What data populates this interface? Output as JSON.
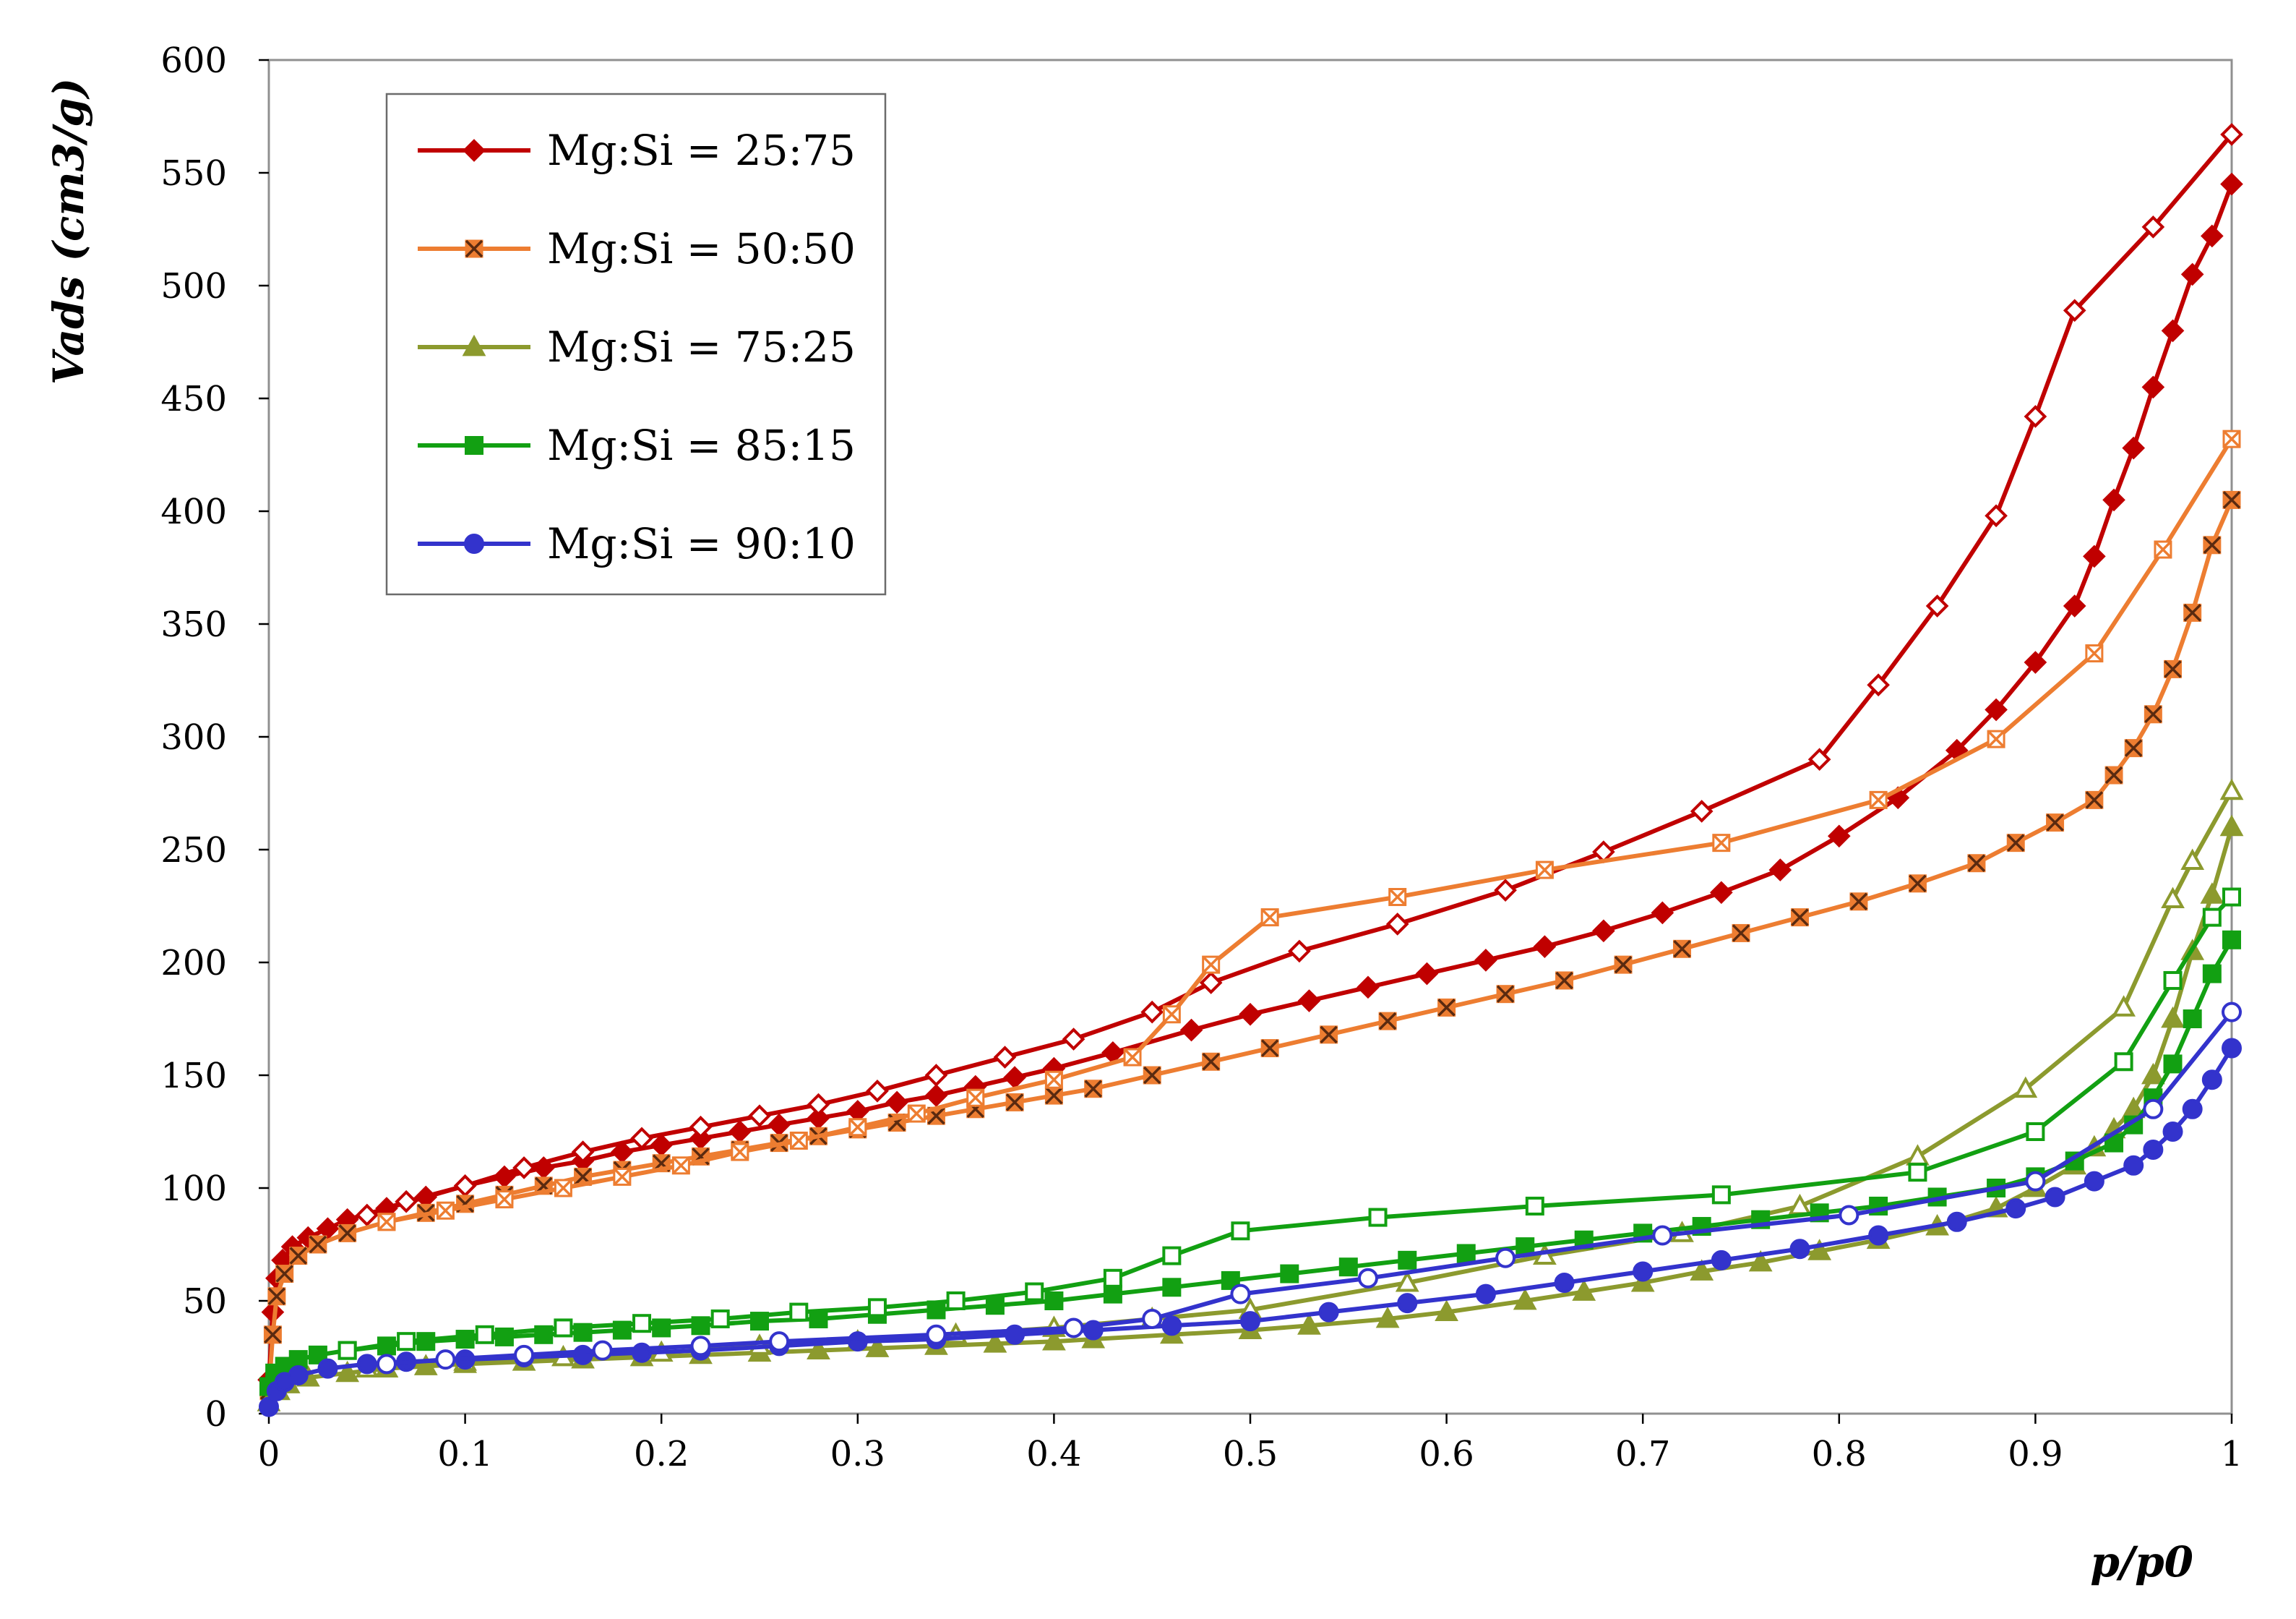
{
  "chart_data": {
    "type": "line",
    "title": "",
    "xlabel": "p/p0",
    "ylabel": "Vads (cm3/g)",
    "xlim": [
      0,
      1
    ],
    "ylim": [
      0,
      600
    ],
    "x_ticks": [
      "0",
      "0.1",
      "0.2",
      "0.3",
      "0.4",
      "0.5",
      "0.6",
      "0.7",
      "0.8",
      "0.9",
      "1"
    ],
    "y_ticks": [
      "0",
      "50",
      "100",
      "150",
      "200",
      "250",
      "300",
      "350",
      "400",
      "450",
      "500",
      "550",
      "600"
    ],
    "grid": false,
    "legend_position": "top-left",
    "series": [
      {
        "name": "Mg:Si = 25:75",
        "color": "#c00000",
        "marker": "diamond",
        "adsorption": {
          "x": [
            0.0,
            0.002,
            0.004,
            0.007,
            0.012,
            0.02,
            0.03,
            0.04,
            0.06,
            0.08,
            0.1,
            0.12,
            0.14,
            0.16,
            0.18,
            0.2,
            0.22,
            0.24,
            0.26,
            0.28,
            0.3,
            0.32,
            0.34,
            0.36,
            0.38,
            0.4,
            0.43,
            0.47,
            0.5,
            0.53,
            0.56,
            0.59,
            0.62,
            0.65,
            0.68,
            0.71,
            0.74,
            0.77,
            0.8,
            0.83,
            0.86,
            0.88,
            0.9,
            0.92,
            0.93,
            0.94,
            0.95,
            0.96,
            0.97,
            0.98,
            0.99,
            1.0
          ],
          "y": [
            15,
            45,
            60,
            68,
            74,
            78,
            82,
            86,
            91,
            96,
            101,
            105,
            109,
            112,
            116,
            119,
            122,
            125,
            128,
            131,
            134,
            138,
            141,
            145,
            149,
            153,
            160,
            170,
            177,
            183,
            189,
            195,
            201,
            207,
            214,
            222,
            231,
            241,
            256,
            273,
            294,
            312,
            333,
            358,
            380,
            405,
            428,
            455,
            480,
            505,
            522,
            545
          ]
        },
        "desorption": {
          "x": [
            1.0,
            0.96,
            0.92,
            0.9,
            0.88,
            0.85,
            0.82,
            0.79,
            0.73,
            0.68,
            0.63,
            0.575,
            0.525,
            0.48,
            0.45,
            0.41,
            0.375,
            0.34,
            0.31,
            0.28,
            0.25,
            0.22,
            0.19,
            0.16,
            0.13,
            0.1,
            0.07,
            0.05
          ],
          "y": [
            567,
            526,
            489,
            442,
            398,
            358,
            323,
            290,
            267,
            249,
            232,
            217,
            205,
            191,
            178,
            166,
            158,
            150,
            143,
            137,
            132,
            127,
            122,
            116,
            109,
            101,
            94,
            88
          ]
        }
      },
      {
        "name": "Mg:Si = 50:50",
        "color": "#ed7d31",
        "marker": "x-square",
        "adsorption": {
          "x": [
            0.0,
            0.002,
            0.004,
            0.008,
            0.015,
            0.025,
            0.04,
            0.06,
            0.08,
            0.1,
            0.12,
            0.14,
            0.16,
            0.18,
            0.2,
            0.22,
            0.24,
            0.26,
            0.28,
            0.3,
            0.32,
            0.34,
            0.36,
            0.38,
            0.4,
            0.42,
            0.45,
            0.48,
            0.51,
            0.54,
            0.57,
            0.6,
            0.63,
            0.66,
            0.69,
            0.72,
            0.75,
            0.78,
            0.81,
            0.84,
            0.87,
            0.89,
            0.91,
            0.93,
            0.94,
            0.95,
            0.96,
            0.97,
            0.98,
            0.99,
            1.0
          ],
          "y": [
            10,
            35,
            52,
            62,
            70,
            75,
            80,
            85,
            89,
            93,
            97,
            101,
            105,
            108,
            111,
            114,
            117,
            120,
            123,
            126,
            129,
            132,
            135,
            138,
            141,
            144,
            150,
            156,
            162,
            168,
            174,
            180,
            186,
            192,
            199,
            206,
            213,
            220,
            227,
            235,
            244,
            253,
            262,
            272,
            283,
            295,
            310,
            330,
            355,
            385,
            405
          ]
        },
        "desorption": {
          "x": [
            1.0,
            0.965,
            0.93,
            0.88,
            0.82,
            0.74,
            0.65,
            0.575,
            0.51,
            0.48,
            0.46,
            0.44,
            0.4,
            0.36,
            0.33,
            0.3,
            0.27,
            0.24,
            0.21,
            0.18,
            0.15,
            0.12,
            0.09,
            0.06
          ],
          "y": [
            432,
            383,
            337,
            299,
            272,
            253,
            241,
            229,
            220,
            199,
            177,
            158,
            148,
            140,
            133,
            127,
            121,
            116,
            110,
            105,
            100,
            95,
            90,
            85
          ]
        }
      },
      {
        "name": "Mg:Si = 75:25",
        "color": "#8c9a2e",
        "marker": "triangle",
        "adsorption": {
          "x": [
            0.0,
            0.005,
            0.01,
            0.02,
            0.04,
            0.06,
            0.08,
            0.1,
            0.13,
            0.16,
            0.19,
            0.22,
            0.25,
            0.28,
            0.31,
            0.34,
            0.37,
            0.4,
            0.42,
            0.46,
            0.5,
            0.53,
            0.57,
            0.6,
            0.64,
            0.67,
            0.7,
            0.73,
            0.76,
            0.79,
            0.82,
            0.85,
            0.88,
            0.9,
            0.92,
            0.93,
            0.94,
            0.95,
            0.96,
            0.97,
            0.98,
            0.99,
            1.0
          ],
          "y": [
            5,
            10,
            13,
            16,
            18,
            20,
            21,
            22,
            23,
            24,
            25,
            26,
            27,
            28,
            29,
            30,
            31,
            32,
            33,
            35,
            37,
            39,
            42,
            45,
            50,
            54,
            58,
            63,
            67,
            72,
            77,
            83,
            91,
            100,
            110,
            118,
            126,
            135,
            150,
            175,
            205,
            230,
            260
          ]
        },
        "desorption": {
          "x": [
            1.0,
            0.98,
            0.97,
            0.945,
            0.895,
            0.84,
            0.78,
            0.72,
            0.65,
            0.58,
            0.5,
            0.45,
            0.4,
            0.35,
            0.3,
            0.25,
            0.2,
            0.15,
            0.1,
            0.05
          ],
          "y": [
            276,
            245,
            228,
            180,
            144,
            114,
            92,
            80,
            70,
            58,
            46,
            42,
            38,
            35,
            32,
            30,
            27,
            25,
            23,
            20
          ]
        }
      },
      {
        "name": "Mg:Si = 85:15",
        "color": "#12a012",
        "marker": "square",
        "adsorption": {
          "x": [
            0.0,
            0.003,
            0.008,
            0.015,
            0.025,
            0.04,
            0.06,
            0.08,
            0.1,
            0.12,
            0.14,
            0.16,
            0.18,
            0.2,
            0.22,
            0.25,
            0.28,
            0.31,
            0.34,
            0.37,
            0.4,
            0.43,
            0.46,
            0.49,
            0.52,
            0.55,
            0.58,
            0.61,
            0.64,
            0.67,
            0.7,
            0.73,
            0.76,
            0.79,
            0.82,
            0.85,
            0.88,
            0.9,
            0.92,
            0.94,
            0.95,
            0.96,
            0.97,
            0.98,
            0.99,
            1.0
          ],
          "y": [
            12,
            18,
            21,
            24,
            26,
            28,
            30,
            32,
            33,
            34,
            35,
            36,
            37,
            38,
            39,
            41,
            42,
            44,
            46,
            48,
            50,
            53,
            56,
            59,
            62,
            65,
            68,
            71,
            74,
            77,
            80,
            83,
            86,
            89,
            92,
            96,
            100,
            105,
            112,
            120,
            128,
            140,
            155,
            175,
            195,
            210
          ]
        },
        "desorption": {
          "x": [
            1.0,
            0.99,
            0.97,
            0.945,
            0.9,
            0.84,
            0.74,
            0.645,
            0.565,
            0.495,
            0.46,
            0.43,
            0.39,
            0.35,
            0.31,
            0.27,
            0.23,
            0.19,
            0.15,
            0.11,
            0.07,
            0.04
          ],
          "y": [
            229,
            220,
            192,
            156,
            125,
            107,
            97,
            92,
            87,
            81,
            70,
            60,
            54,
            50,
            47,
            45,
            42,
            40,
            38,
            35,
            32,
            28
          ]
        }
      },
      {
        "name": "Mg:Si = 90:10",
        "color": "#3333cc",
        "marker": "circle",
        "adsorption": {
          "x": [
            0.0,
            0.004,
            0.008,
            0.015,
            0.03,
            0.05,
            0.07,
            0.1,
            0.13,
            0.16,
            0.19,
            0.22,
            0.26,
            0.3,
            0.34,
            0.38,
            0.42,
            0.46,
            0.5,
            0.54,
            0.58,
            0.62,
            0.66,
            0.7,
            0.74,
            0.78,
            0.82,
            0.86,
            0.89,
            0.91,
            0.93,
            0.95,
            0.96,
            0.97,
            0.98,
            0.99,
            1.0
          ],
          "y": [
            3,
            10,
            14,
            17,
            20,
            22,
            23,
            24,
            25,
            26,
            27,
            28,
            30,
            32,
            33,
            35,
            37,
            39,
            41,
            45,
            49,
            53,
            58,
            63,
            68,
            73,
            79,
            85,
            91,
            96,
            103,
            110,
            117,
            125,
            135,
            148,
            162
          ]
        },
        "desorption": {
          "x": [
            1.0,
            0.96,
            0.9,
            0.805,
            0.71,
            0.63,
            0.56,
            0.495,
            0.45,
            0.41,
            0.34,
            0.26,
            0.22,
            0.17,
            0.13,
            0.09,
            0.06
          ],
          "y": [
            178,
            135,
            103,
            88,
            79,
            69,
            60,
            53,
            42,
            38,
            35,
            32,
            30,
            28,
            26,
            24,
            22
          ]
        }
      }
    ]
  }
}
